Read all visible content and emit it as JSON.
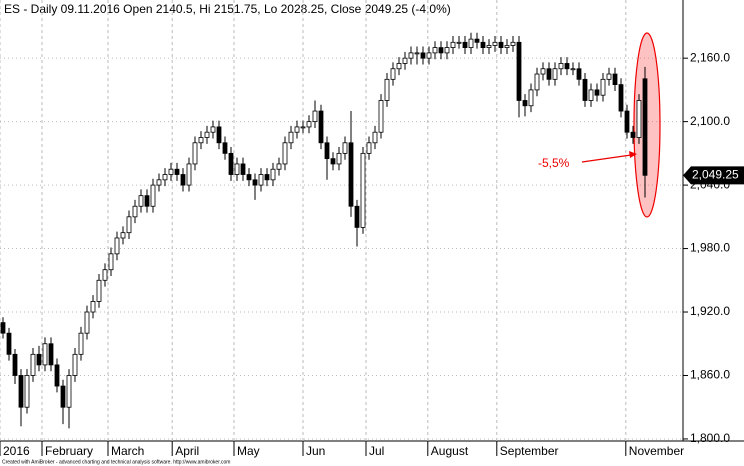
{
  "chart_data": {
    "type": "candlestick",
    "title": "ES - Daily 09.11.2016 Open 2140.5, Hi 2151.75, Lo 2028.25, Close 2049.25 (-4.0%)",
    "annotation": "-5,5%",
    "footer": "Created with AmiBroker - advanced charting and technical analysis software. http://www.amibroker.com",
    "last_price": {
      "value": 2049.25,
      "label": "2,049.25"
    },
    "ylim": [
      1799,
      2215
    ],
    "yticks": [
      {
        "value": 1800,
        "label": "1,800.0"
      },
      {
        "value": 1860,
        "label": "1,860.0"
      },
      {
        "value": 1920,
        "label": "1,920.0"
      },
      {
        "value": 1980,
        "label": "1,980.0"
      },
      {
        "value": 2040,
        "label": "2,040.0"
      },
      {
        "value": 2100,
        "label": "2,100.0"
      },
      {
        "value": 2160,
        "label": "2,160.0"
      }
    ],
    "xlim": [
      -0.5,
      113.5
    ],
    "xticks": [
      {
        "value": -0.5,
        "label": "2016"
      },
      {
        "value": 6.5,
        "label": "February"
      },
      {
        "value": 17.5,
        "label": "March"
      },
      {
        "value": 28.2,
        "label": "April"
      },
      {
        "value": 38.5,
        "label": "May"
      },
      {
        "value": 50,
        "label": "Jun"
      },
      {
        "value": 60.5,
        "label": "Jul"
      },
      {
        "value": 70.8,
        "label": "August"
      },
      {
        "value": 82.3,
        "label": "September"
      },
      {
        "value": 103.8,
        "label": "November"
      }
    ],
    "grid": true,
    "ohlc": [
      [
        1910,
        1915,
        1895,
        1900
      ],
      [
        1900,
        1905,
        1874,
        1880
      ],
      [
        1880,
        1885,
        1852,
        1860
      ],
      [
        1860,
        1866,
        1812,
        1830
      ],
      [
        1830,
        1866,
        1824,
        1860
      ],
      [
        1860,
        1886,
        1854,
        1880
      ],
      [
        1880,
        1888,
        1864,
        1870
      ],
      [
        1870,
        1896,
        1864,
        1890
      ],
      [
        1890,
        1896,
        1864,
        1870
      ],
      [
        1870,
        1876,
        1844,
        1850
      ],
      [
        1850,
        1856,
        1814,
        1830
      ],
      [
        1830,
        1866,
        1810,
        1860
      ],
      [
        1860,
        1886,
        1854,
        1880
      ],
      [
        1880,
        1906,
        1874,
        1900
      ],
      [
        1900,
        1926,
        1894,
        1920
      ],
      [
        1920,
        1936,
        1914,
        1930
      ],
      [
        1930,
        1956,
        1924,
        1950
      ],
      [
        1950,
        1966,
        1944,
        1960
      ],
      [
        1960,
        1981,
        1954,
        1975
      ],
      [
        1975,
        1996,
        1969,
        1990
      ],
      [
        1990,
        2001,
        1984,
        1995
      ],
      [
        1995,
        2016,
        1989,
        2010
      ],
      [
        2010,
        2026,
        2004,
        2020
      ],
      [
        2020,
        2036,
        2014,
        2030
      ],
      [
        2030,
        2036,
        2014,
        2020
      ],
      [
        2020,
        2046,
        2014,
        2040
      ],
      [
        2040,
        2051,
        2034,
        2045
      ],
      [
        2045,
        2056,
        2039,
        2050
      ],
      [
        2050,
        2061,
        2044,
        2055
      ],
      [
        2055,
        2061,
        2044,
        2050
      ],
      [
        2050,
        2056,
        2034,
        2040
      ],
      [
        2040,
        2066,
        2034,
        2060
      ],
      [
        2060,
        2086,
        2054,
        2080
      ],
      [
        2080,
        2091,
        2074,
        2085
      ],
      [
        2085,
        2096,
        2079,
        2090
      ],
      [
        2090,
        2101,
        2084,
        2095
      ],
      [
        2095,
        2101,
        2074,
        2080
      ],
      [
        2080,
        2086,
        2064,
        2070
      ],
      [
        2070,
        2076,
        2044,
        2050
      ],
      [
        2050,
        2066,
        2044,
        2060
      ],
      [
        2060,
        2066,
        2044,
        2050
      ],
      [
        2050,
        2056,
        2039,
        2045
      ],
      [
        2045,
        2051,
        2026,
        2040
      ],
      [
        2040,
        2056,
        2034,
        2050
      ],
      [
        2050,
        2056,
        2039,
        2045
      ],
      [
        2045,
        2061,
        2039,
        2055
      ],
      [
        2055,
        2066,
        2049,
        2060
      ],
      [
        2060,
        2086,
        2054,
        2080
      ],
      [
        2080,
        2096,
        2074,
        2090
      ],
      [
        2090,
        2101,
        2084,
        2095
      ],
      [
        2095,
        2101,
        2089,
        2095
      ],
      [
        2095,
        2106,
        2089,
        2100
      ],
      [
        2100,
        2120,
        2094,
        2110
      ],
      [
        2110,
        2116,
        2074,
        2080
      ],
      [
        2080,
        2086,
        2045,
        2065
      ],
      [
        2065,
        2071,
        2054,
        2060
      ],
      [
        2060,
        2076,
        2054,
        2070
      ],
      [
        2070,
        2086,
        2064,
        2080
      ],
      [
        2080,
        2110,
        2010,
        2020
      ],
      [
        2020,
        2026,
        1982,
        2000
      ],
      [
        2000,
        2076,
        1994,
        2070
      ],
      [
        2070,
        2086,
        2064,
        2080
      ],
      [
        2080,
        2096,
        2074,
        2090
      ],
      [
        2090,
        2126,
        2084,
        2120
      ],
      [
        2120,
        2146,
        2114,
        2140
      ],
      [
        2140,
        2156,
        2134,
        2150
      ],
      [
        2150,
        2161,
        2144,
        2155
      ],
      [
        2155,
        2166,
        2149,
        2160
      ],
      [
        2160,
        2171,
        2154,
        2165
      ],
      [
        2165,
        2171,
        2154,
        2165
      ],
      [
        2165,
        2171,
        2154,
        2160
      ],
      [
        2160,
        2171,
        2154,
        2165
      ],
      [
        2165,
        2176,
        2159,
        2170
      ],
      [
        2170,
        2176,
        2159,
        2165
      ],
      [
        2165,
        2176,
        2159,
        2170
      ],
      [
        2170,
        2181,
        2164,
        2175
      ],
      [
        2175,
        2181,
        2169,
        2175
      ],
      [
        2175,
        2181,
        2164,
        2170
      ],
      [
        2170,
        2184,
        2164,
        2178
      ],
      [
        2178,
        2184,
        2169,
        2175
      ],
      [
        2175,
        2181,
        2164,
        2170
      ],
      [
        2170,
        2178,
        2164,
        2172
      ],
      [
        2172,
        2181,
        2166,
        2175
      ],
      [
        2175,
        2181,
        2164,
        2170
      ],
      [
        2170,
        2178,
        2164,
        2172
      ],
      [
        2172,
        2181,
        2166,
        2175
      ],
      [
        2175,
        2181,
        2104,
        2120
      ],
      [
        2120,
        2126,
        2105,
        2115
      ],
      [
        2115,
        2136,
        2109,
        2130
      ],
      [
        2130,
        2151,
        2124,
        2145
      ],
      [
        2145,
        2156,
        2139,
        2150
      ],
      [
        2150,
        2156,
        2134,
        2140
      ],
      [
        2140,
        2156,
        2134,
        2150
      ],
      [
        2150,
        2161,
        2144,
        2155
      ],
      [
        2155,
        2161,
        2144,
        2150
      ],
      [
        2150,
        2156,
        2144,
        2150
      ],
      [
        2150,
        2156,
        2134,
        2140
      ],
      [
        2140,
        2146,
        2114,
        2120
      ],
      [
        2120,
        2136,
        2114,
        2130
      ],
      [
        2130,
        2136,
        2119,
        2125
      ],
      [
        2125,
        2146,
        2119,
        2140
      ],
      [
        2140,
        2151,
        2134,
        2145
      ],
      [
        2145,
        2151,
        2129,
        2135
      ],
      [
        2135,
        2141,
        2104,
        2110
      ],
      [
        2110,
        2116,
        2084,
        2090
      ],
      [
        2090,
        2096,
        2079,
        2085
      ],
      [
        2085,
        2126,
        2079,
        2120
      ],
      [
        2140.5,
        2151.75,
        2028.25,
        2049.25
      ]
    ]
  }
}
